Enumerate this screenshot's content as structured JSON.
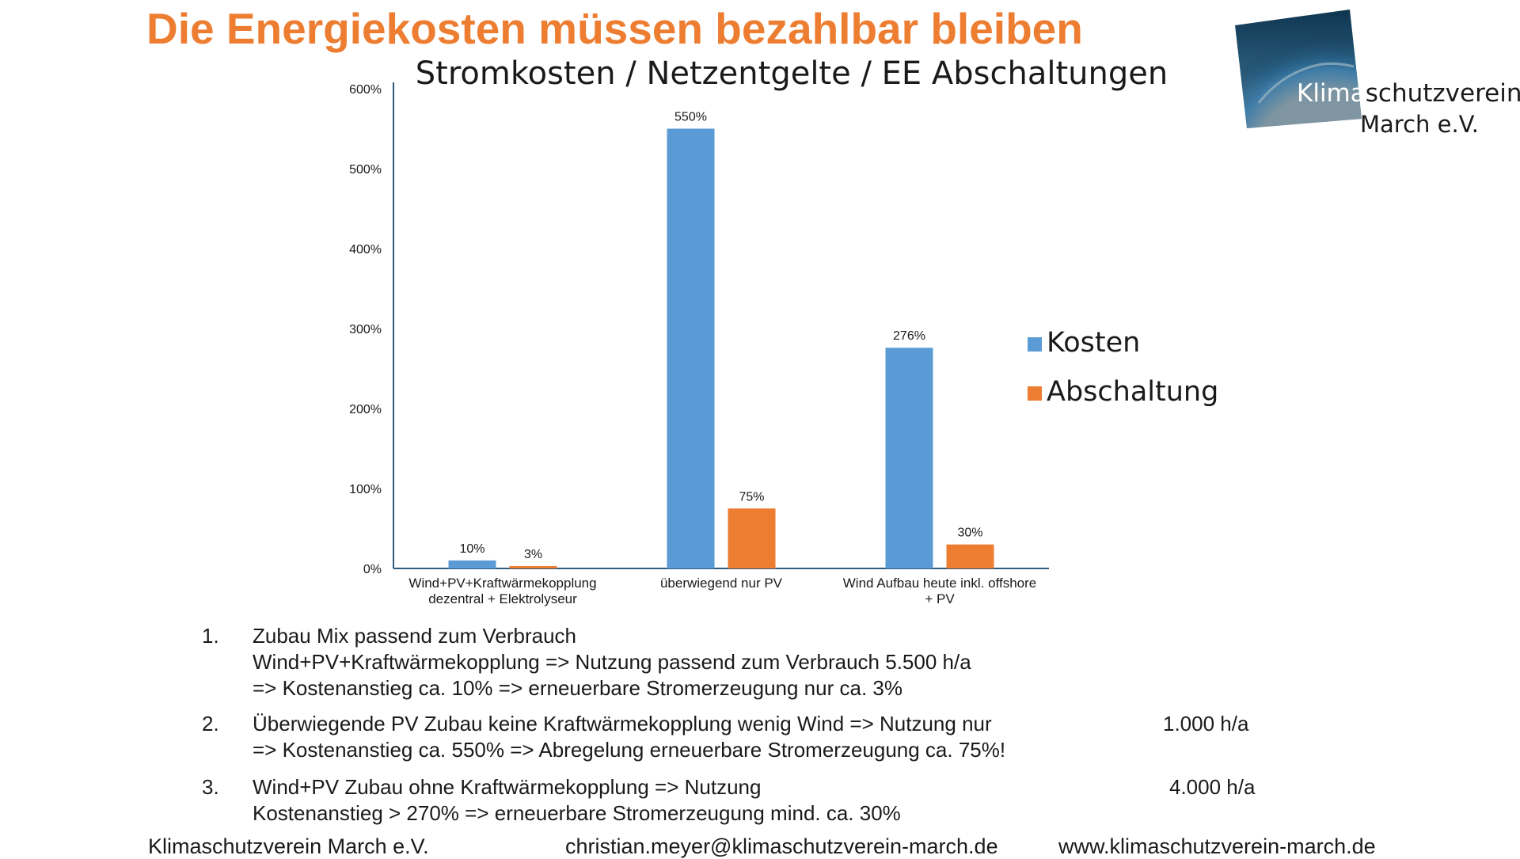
{
  "page": {
    "title": "Die Energiekosten müssen bezahlbar bleiben",
    "accent_color": "#ed7d31"
  },
  "logo": {
    "text_part1": "Klima",
    "text_part2": "schutzverein",
    "text_line2": "March e.V."
  },
  "chart_data": {
    "type": "bar",
    "title": "Stromkosten / Netzentgelte / EE Abschaltungen",
    "categories": [
      [
        "Wind+PV+Kraftwärmekopplung",
        "dezentral + Elektrolyseur"
      ],
      [
        "überwiegend nur PV"
      ],
      [
        "Wind Aufbau heute inkl. offshore",
        "+ PV"
      ]
    ],
    "series": [
      {
        "name": "Kosten",
        "values": [
          10,
          550,
          276
        ],
        "labels": [
          "10%",
          "550%",
          "276%"
        ],
        "color": "#5b9bd5"
      },
      {
        "name": "Abschaltung",
        "values": [
          3,
          75,
          30
        ],
        "labels": [
          "3%",
          "75%",
          "30%"
        ],
        "color": "#ed7d31"
      }
    ],
    "ylim": [
      0,
      600
    ],
    "yticks": [
      "0%",
      "100%",
      "200%",
      "300%",
      "400%",
      "500%",
      "600%"
    ],
    "grid": false,
    "legend_position": "right",
    "xlabel": "",
    "ylabel": ""
  },
  "notes": [
    {
      "number": "1.",
      "lines": [
        "Zubau Mix passend zum Verbrauch",
        "Wind+PV+Kraftwärmekopplung => Nutzung passend zum Verbrauch 5.500 h/a",
        "=> Kostenanstieg ca. 10% => erneuerbare Stromerzeugung nur ca. 3%"
      ],
      "rate": ""
    },
    {
      "number": "2.",
      "lines": [
        "Überwiegende PV Zubau keine Kraftwärmekopplung wenig Wind => Nutzung nur",
        "=> Kostenanstieg ca. 550% => Abregelung erneuerbare Stromerzeugung ca. 75%!"
      ],
      "rate": "1.000 h/a"
    },
    {
      "number": "3.",
      "lines": [
        "Wind+PV Zubau ohne Kraftwärmekopplung => Nutzung",
        "Kostenanstieg > 270% => erneuerbare Stromerzeugung mind. ca. 30%"
      ],
      "rate": "4.000 h/a"
    }
  ],
  "footer": {
    "org": "Klimaschutzverein March e.V.",
    "email": "christian.meyer@klimaschutzverein-march.de",
    "website": "www.klimaschutzverein-march.de"
  }
}
